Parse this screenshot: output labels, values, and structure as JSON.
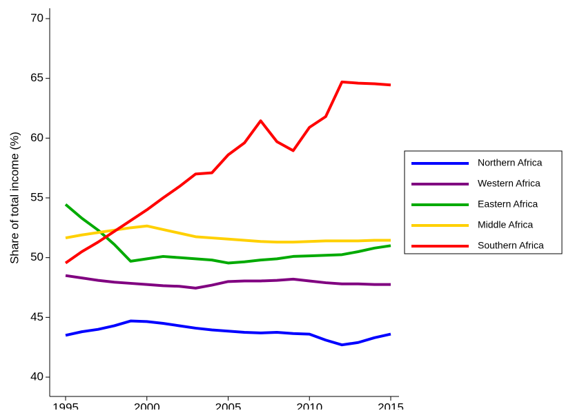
{
  "chart_data": {
    "type": "line",
    "y_label": "Share of total income (%)",
    "x": [
      1995,
      1996,
      1997,
      1998,
      1999,
      2000,
      2001,
      2002,
      2003,
      2004,
      2005,
      2006,
      2007,
      2008,
      2009,
      2010,
      2011,
      2012,
      2013,
      2014,
      2015
    ],
    "series": [
      {
        "name": "Northern Africa",
        "color": "#0000ff",
        "values": [
          43.5,
          43.8,
          44.0,
          44.3,
          44.7,
          44.65,
          44.5,
          44.3,
          44.1,
          43.95,
          43.85,
          43.75,
          43.7,
          43.75,
          43.65,
          43.6,
          43.1,
          42.7,
          42.9,
          43.3,
          43.6
        ]
      },
      {
        "name": "Western Africa",
        "color": "#800080",
        "values": [
          48.5,
          48.3,
          48.1,
          47.95,
          47.85,
          47.75,
          47.65,
          47.6,
          47.45,
          47.7,
          48.0,
          48.05,
          48.05,
          48.1,
          48.2,
          48.05,
          47.9,
          47.8,
          47.8,
          47.75,
          47.75
        ]
      },
      {
        "name": "Eastern Africa",
        "color": "#00aa00",
        "values": [
          54.45,
          53.3,
          52.3,
          51.1,
          49.7,
          49.9,
          50.1,
          50.0,
          49.9,
          49.8,
          49.55,
          49.65,
          49.8,
          49.9,
          50.1,
          50.15,
          50.2,
          50.25,
          50.5,
          50.8,
          51.0
        ]
      },
      {
        "name": "Middle Africa",
        "color": "#ffd000",
        "values": [
          51.65,
          51.9,
          52.1,
          52.3,
          52.5,
          52.65,
          52.35,
          52.05,
          51.75,
          51.65,
          51.55,
          51.45,
          51.35,
          51.3,
          51.3,
          51.35,
          51.4,
          51.4,
          51.4,
          51.45,
          51.45
        ]
      },
      {
        "name": "Southern Africa",
        "color": "#ff0000",
        "values": [
          49.55,
          50.5,
          51.3,
          52.2,
          53.1,
          54.0,
          55.0,
          55.95,
          57.0,
          57.1,
          58.6,
          59.6,
          61.45,
          59.7,
          58.95,
          60.9,
          61.8,
          64.7,
          64.6,
          64.55,
          64.45
        ]
      }
    ],
    "xlim": [
      1995,
      2015
    ],
    "xticks": [
      1995,
      2000,
      2005,
      2010,
      2015
    ],
    "ylim": [
      40,
      70
    ],
    "yticks": [
      40,
      45,
      50,
      55,
      60,
      65,
      70
    ],
    "grid": false,
    "legend": "right"
  }
}
